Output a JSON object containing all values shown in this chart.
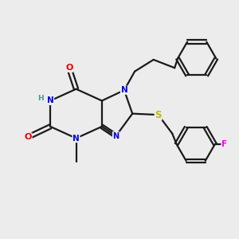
{
  "background_color": "#ececec",
  "bond_color": "#1a1a1a",
  "N_color": "#0000ee",
  "O_color": "#ee0000",
  "S_color": "#bbbb00",
  "H_color": "#4a9a8a",
  "F_color": "#ee00ee",
  "C_color": "#1a1a1a",
  "line_width": 1.6,
  "figsize": [
    3.0,
    3.0
  ],
  "dpi": 100,
  "xlim": [
    0,
    10
  ],
  "ylim": [
    0,
    10
  ]
}
